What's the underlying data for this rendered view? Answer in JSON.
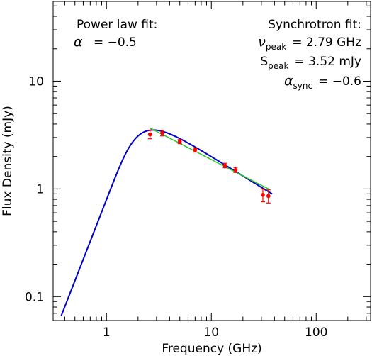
{
  "chart_data": {
    "type": "scatter",
    "title": "",
    "xlabel": "Frequency (GHz)",
    "ylabel": "Flux Density (mJy)",
    "xscale": "log",
    "yscale": "log",
    "xlim": [
      0.31,
      330
    ],
    "ylim": [
      0.06,
      55
    ],
    "x_ticks": [
      {
        "value": 1,
        "label": "1"
      },
      {
        "value": 10,
        "label": "10"
      },
      {
        "value": 100,
        "label": "100"
      }
    ],
    "y_ticks": [
      {
        "value": 0.1,
        "label": "0.1"
      },
      {
        "value": 1,
        "label": "1"
      },
      {
        "value": 10,
        "label": "10"
      }
    ],
    "grid": false,
    "series": [
      {
        "kind": "points",
        "color": "#ff0000",
        "x": [
          2.6,
          3.4,
          5.0,
          7.0,
          13.5,
          17.0,
          31.0,
          35.0
        ],
        "y": [
          3.2,
          3.3,
          2.75,
          2.3,
          1.65,
          1.5,
          0.88,
          0.86
        ],
        "yerr_low": [
          0.28,
          0.2,
          0.12,
          0.1,
          0.08,
          0.08,
          0.12,
          0.12
        ],
        "yerr_high": [
          0.3,
          0.2,
          0.12,
          0.1,
          0.08,
          0.08,
          0.12,
          0.12
        ]
      },
      {
        "kind": "synchrotron_fit",
        "color": "#0000cc",
        "nu_peak": 2.79,
        "s_peak": 3.52,
        "alpha_sync": -0.6,
        "x_range": [
          0.37,
          38
        ]
      },
      {
        "kind": "power_law_fit",
        "color": "#22cc22",
        "alpha": -0.5,
        "x_range": [
          2.6,
          36
        ],
        "y_at_x_start": 3.67
      }
    ],
    "annotations": {
      "left": {
        "title": "Power law fit:",
        "alpha_symbol": "α",
        "alpha_value": "= −0.5"
      },
      "right": {
        "title": "Synchrotron fit:",
        "nu_symbol": "ν",
        "nu_sub": "peak",
        "nu_value": "= 2.79 GHz",
        "s_symbol": "S",
        "s_sub": "peak",
        "s_value": "= 3.52 mJy",
        "a_symbol": "α",
        "a_sub": "sync",
        "a_value": "= −0.6"
      }
    }
  }
}
